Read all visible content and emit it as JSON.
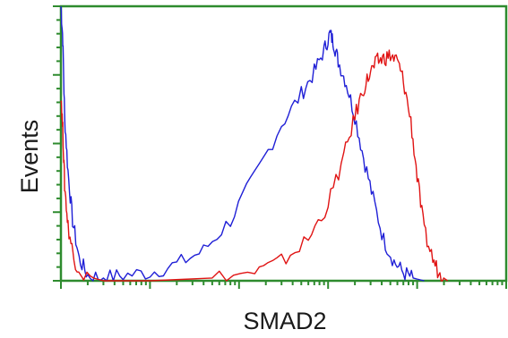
{
  "chart_data": {
    "type": "line",
    "title": "",
    "xlabel": "SMAD2",
    "ylabel": "Events",
    "x_scale": "log",
    "xlim": [
      1,
      100000
    ],
    "ylim": [
      0,
      100
    ],
    "grid": false,
    "legend": "none",
    "frame_color": "#2e8b2e",
    "series": [
      {
        "color": "#1f1fd6",
        "points": [
          [
            1,
            100
          ],
          [
            1.05,
            88
          ],
          [
            1.1,
            60
          ],
          [
            1.2,
            40
          ],
          [
            1.35,
            22
          ],
          [
            1.6,
            8
          ],
          [
            2,
            2
          ],
          [
            3,
            1
          ],
          [
            5,
            2
          ],
          [
            10,
            3
          ],
          [
            20,
            6
          ],
          [
            40,
            11
          ],
          [
            80,
            22
          ],
          [
            150,
            38
          ],
          [
            300,
            57
          ],
          [
            500,
            68
          ],
          [
            700,
            76
          ],
          [
            900,
            84
          ],
          [
            1050,
            90
          ],
          [
            1150,
            87
          ],
          [
            1300,
            80
          ],
          [
            1600,
            72
          ],
          [
            2000,
            60
          ],
          [
            2500,
            45
          ],
          [
            3200,
            30
          ],
          [
            4200,
            15
          ],
          [
            5500,
            7
          ],
          [
            7000,
            3
          ],
          [
            9000,
            1
          ],
          [
            12000,
            0
          ]
        ]
      },
      {
        "color": "#e01414",
        "points": [
          [
            1,
            68
          ],
          [
            1.05,
            55
          ],
          [
            1.1,
            35
          ],
          [
            1.2,
            20
          ],
          [
            1.4,
            8
          ],
          [
            1.8,
            2
          ],
          [
            3,
            0
          ],
          [
            10,
            0
          ],
          [
            50,
            1
          ],
          [
            150,
            3
          ],
          [
            300,
            7
          ],
          [
            600,
            15
          ],
          [
            1000,
            28
          ],
          [
            1500,
            45
          ],
          [
            2000,
            60
          ],
          [
            2500,
            70
          ],
          [
            3000,
            76
          ],
          [
            3600,
            80
          ],
          [
            4200,
            81
          ],
          [
            5000,
            82
          ],
          [
            6000,
            80
          ],
          [
            7000,
            73
          ],
          [
            8500,
            58
          ],
          [
            10000,
            38
          ],
          [
            12000,
            18
          ],
          [
            15000,
            8
          ],
          [
            18000,
            2
          ],
          [
            22000,
            0
          ]
        ]
      }
    ]
  }
}
